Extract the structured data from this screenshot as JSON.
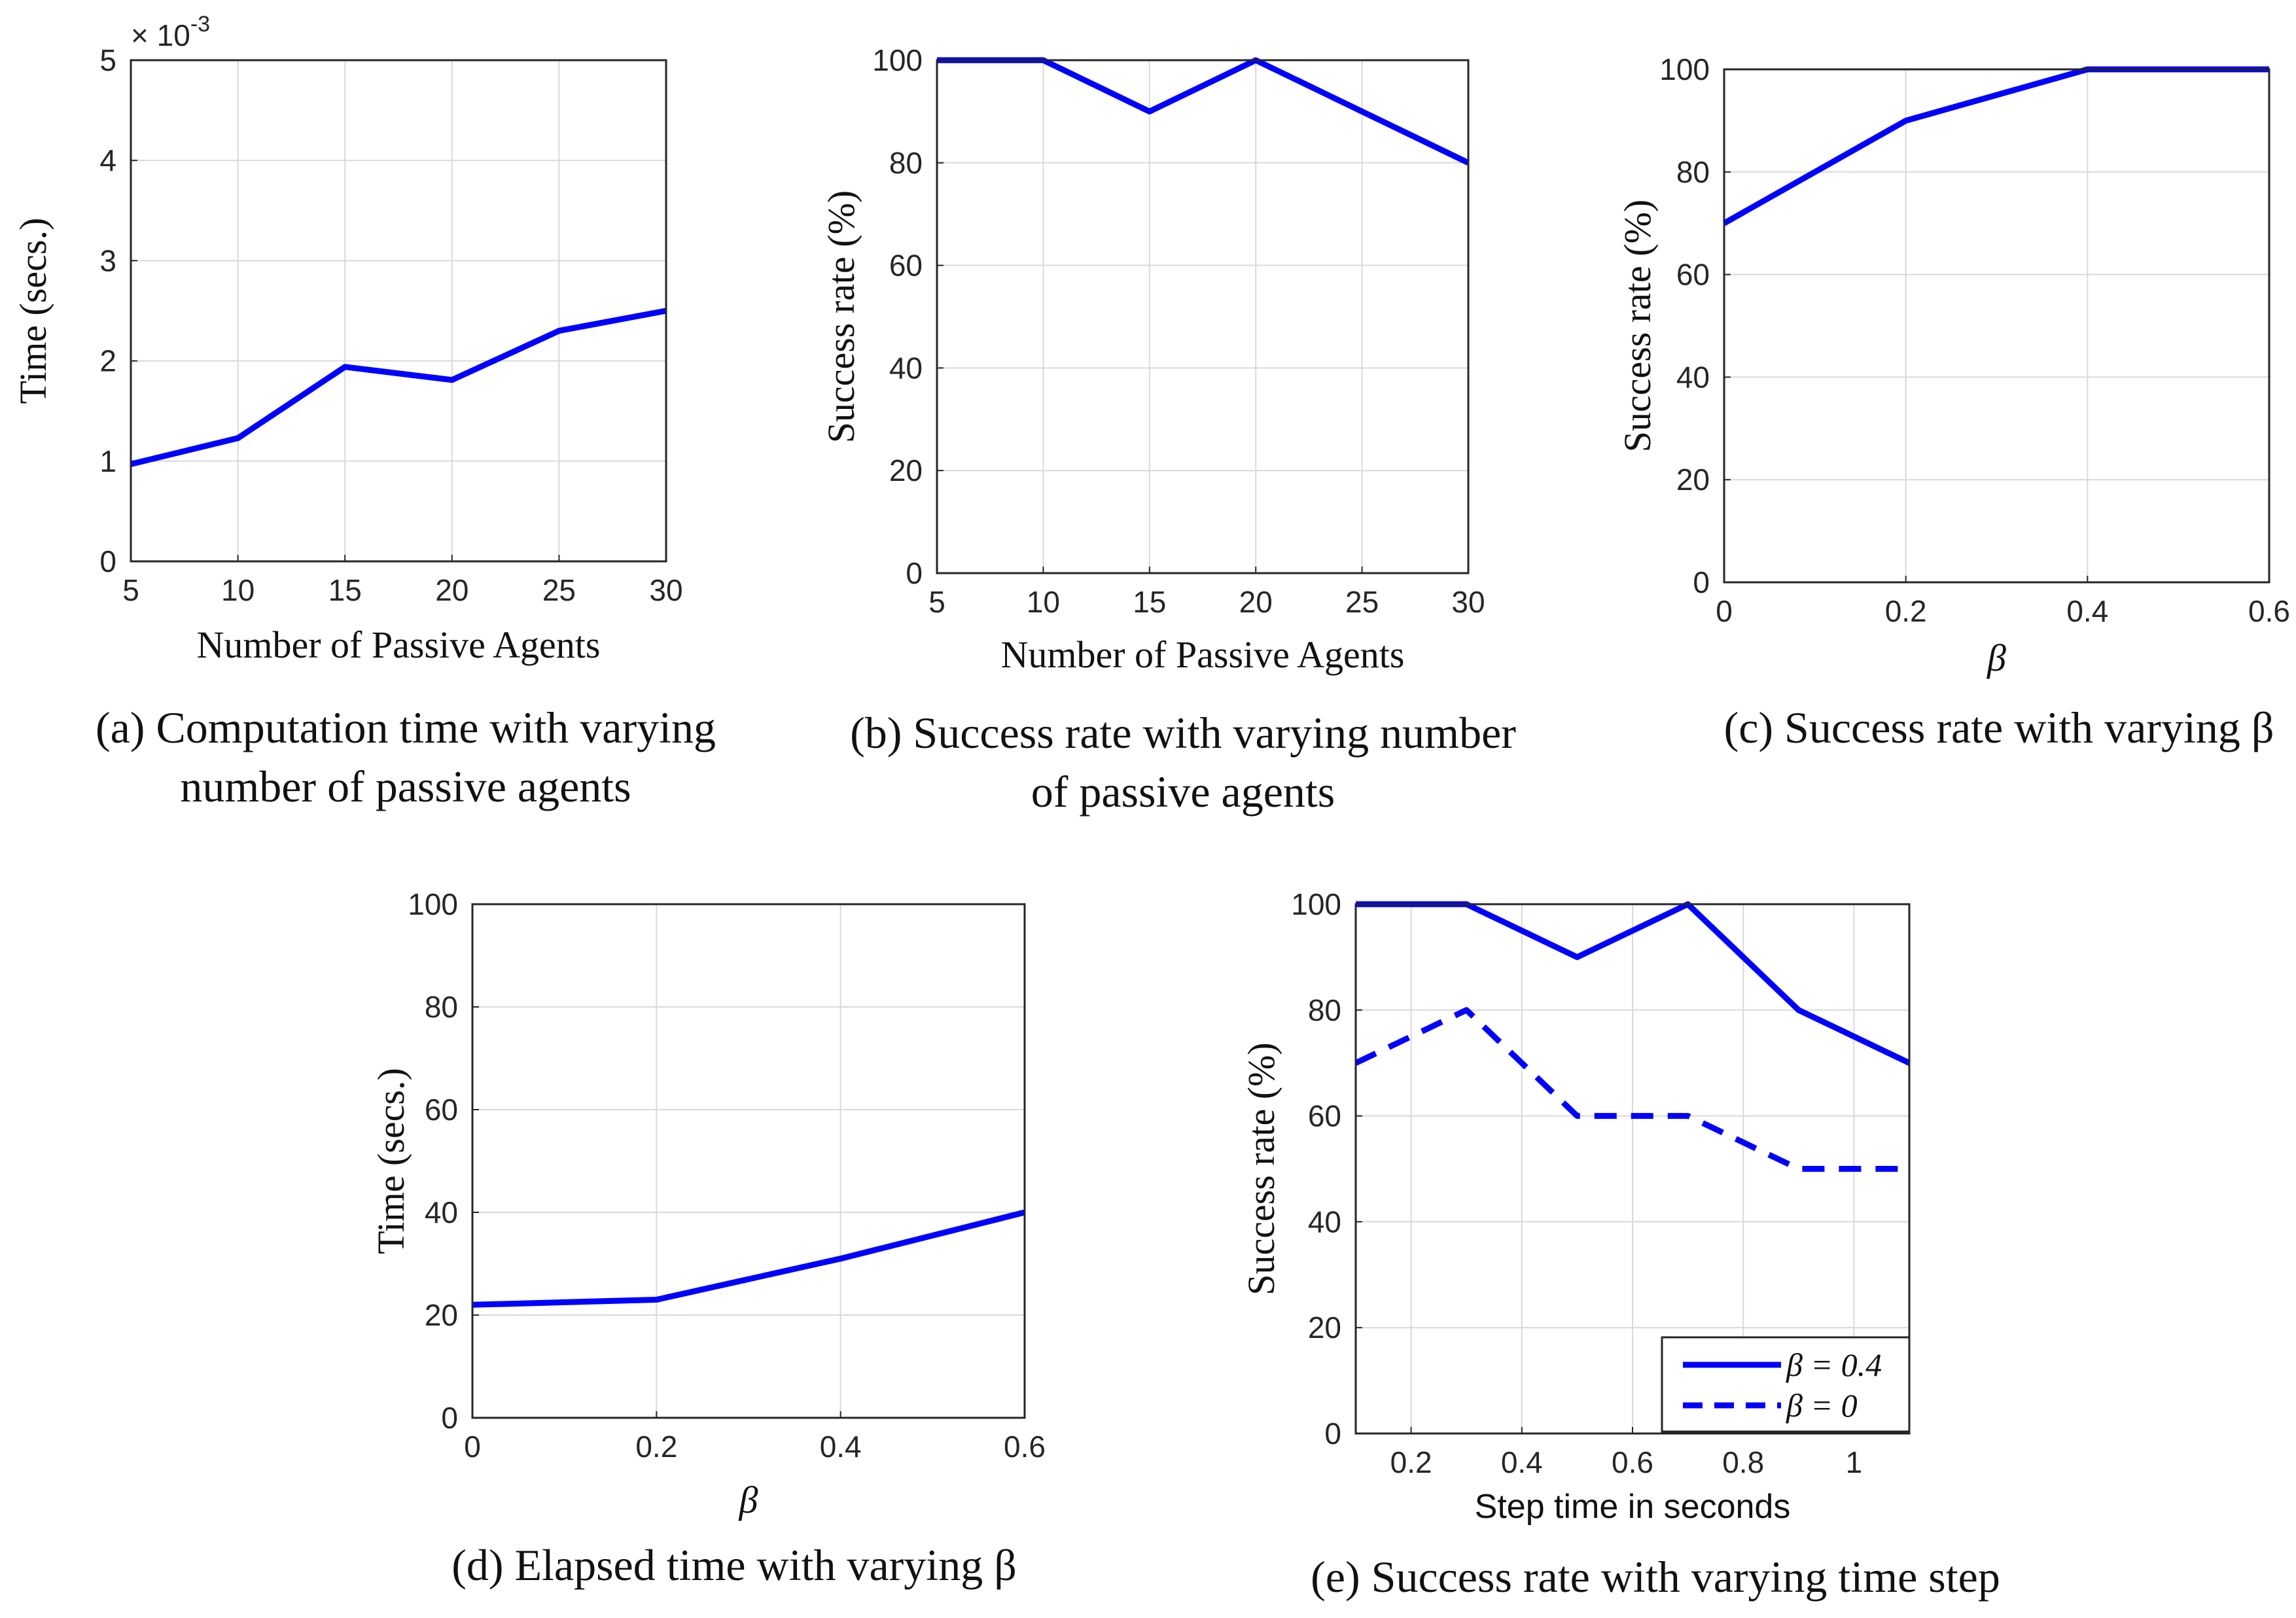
{
  "colors": {
    "series": "#0000ff",
    "grid": "#d9d9d9",
    "axis": "#262626"
  },
  "chart_data": [
    {
      "id": "a",
      "type": "line",
      "title": "",
      "caption_lines": [
        "(a) Computation time with varying",
        "number of passive agents"
      ],
      "xlabel": "Number of Passive Agents",
      "ylabel": "Time (secs.)",
      "y_multiplier_base": "× 10",
      "y_multiplier_exp": "-3",
      "xlim": [
        5,
        30
      ],
      "ylim": [
        0,
        5
      ],
      "xticks": [
        5,
        10,
        15,
        20,
        25,
        30
      ],
      "xtick_labels": [
        "5",
        "10",
        "15",
        "20",
        "25",
        "30"
      ],
      "yticks": [
        0,
        1,
        2,
        3,
        4,
        5
      ],
      "ytick_labels": [
        "0",
        "1",
        "2",
        "3",
        "4",
        "5"
      ],
      "grid": true,
      "series": [
        {
          "name": "",
          "style": "solid",
          "x": [
            5,
            10,
            15,
            20,
            25,
            30
          ],
          "values": [
            0.97,
            1.23,
            1.94,
            1.81,
            2.3,
            2.5
          ]
        }
      ]
    },
    {
      "id": "b",
      "type": "line",
      "title": "",
      "caption_lines": [
        "(b) Success rate with varying number",
        "of passive agents"
      ],
      "xlabel": "Number of Passive Agents",
      "ylabel": "Success rate (%)",
      "xlim": [
        5,
        30
      ],
      "ylim": [
        0,
        100
      ],
      "xticks": [
        5,
        10,
        15,
        20,
        25,
        30
      ],
      "xtick_labels": [
        "5",
        "10",
        "15",
        "20",
        "25",
        "30"
      ],
      "yticks": [
        0,
        20,
        40,
        60,
        80,
        100
      ],
      "ytick_labels": [
        "0",
        "20",
        "40",
        "60",
        "80",
        "100"
      ],
      "grid": true,
      "series": [
        {
          "name": "",
          "style": "solid",
          "x": [
            5,
            10,
            15,
            20,
            30
          ],
          "values": [
            100,
            100,
            90,
            100,
            80
          ]
        }
      ]
    },
    {
      "id": "c",
      "type": "line",
      "title": "",
      "caption_lines": [
        "(c) Success rate with varying β"
      ],
      "xlabel": "β",
      "ylabel": "Success rate (%)",
      "xlim": [
        0,
        0.6
      ],
      "ylim": [
        0,
        100
      ],
      "xticks": [
        0,
        0.2,
        0.4,
        0.6
      ],
      "xtick_labels": [
        "0",
        "0.2",
        "0.4",
        "0.6"
      ],
      "yticks": [
        0,
        20,
        40,
        60,
        80,
        100
      ],
      "ytick_labels": [
        "0",
        "20",
        "40",
        "60",
        "80",
        "100"
      ],
      "grid": true,
      "series": [
        {
          "name": "",
          "style": "solid",
          "x": [
            0,
            0.2,
            0.4,
            0.6
          ],
          "values": [
            70,
            90,
            100,
            100
          ]
        }
      ]
    },
    {
      "id": "d",
      "type": "line",
      "title": "",
      "caption_lines": [
        "(d) Elapsed time with varying β"
      ],
      "xlabel": "β",
      "ylabel": "Time (secs.)",
      "xlim": [
        0,
        0.6
      ],
      "ylim": [
        0,
        100
      ],
      "xticks": [
        0,
        0.2,
        0.4,
        0.6
      ],
      "xtick_labels": [
        "0",
        "0.2",
        "0.4",
        "0.6"
      ],
      "yticks": [
        0,
        20,
        40,
        60,
        80,
        100
      ],
      "ytick_labels": [
        "0",
        "20",
        "40",
        "60",
        "80",
        "100"
      ],
      "grid": true,
      "series": [
        {
          "name": "",
          "style": "solid",
          "x": [
            0,
            0.2,
            0.4,
            0.6
          ],
          "values": [
            22,
            23,
            31,
            40
          ]
        }
      ]
    },
    {
      "id": "e",
      "type": "line",
      "title": "",
      "caption_lines": [
        "(e) Success rate with varying time step"
      ],
      "xlabel": "Step time in seconds",
      "ylabel": "Success rate (%)",
      "xlim": [
        0.1,
        1.1
      ],
      "ylim": [
        0,
        100
      ],
      "xticks": [
        0.2,
        0.4,
        0.6,
        0.8,
        1.0
      ],
      "xtick_labels": [
        "0.2",
        "0.4",
        "0.6",
        "0.8",
        "1"
      ],
      "yticks": [
        0,
        20,
        40,
        60,
        80,
        100
      ],
      "ytick_labels": [
        "0",
        "20",
        "40",
        "60",
        "80",
        "100"
      ],
      "grid": true,
      "legend": "bottom-right",
      "series": [
        {
          "name": "β = 0.4",
          "style": "solid",
          "x": [
            0.1,
            0.3,
            0.5,
            0.7,
            0.9,
            1.1
          ],
          "values": [
            100,
            100,
            90,
            100,
            80,
            70
          ]
        },
        {
          "name": "β = 0",
          "style": "dashed",
          "x": [
            0.1,
            0.3,
            0.5,
            0.7,
            0.9,
            1.1
          ],
          "values": [
            70,
            80,
            60,
            60,
            50,
            50
          ]
        }
      ]
    }
  ]
}
